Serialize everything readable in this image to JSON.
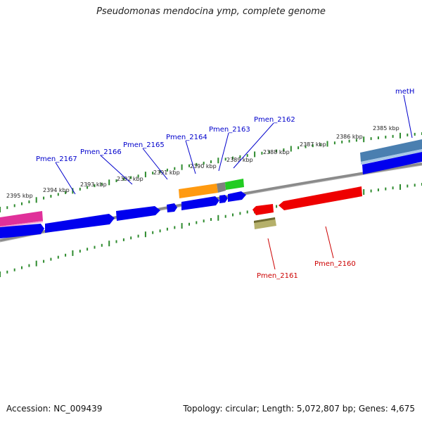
{
  "title": "Pseudomonas mendocina ymp, complete genome",
  "accession": "Accession: NC_009439",
  "stats": "Topology: circular; Length: 5,072,807 bp; Genes: 4,675",
  "colors": {
    "backbone": "#808080",
    "tick": "#2e8b2e",
    "forward_label": "#0000cc",
    "reverse_label": "#cc0000"
  },
  "tick_labels": [
    "2395 kbp",
    "2394 kbp",
    "2393 kbp",
    "2392 kbp",
    "2391 kbp",
    "2390 kbp",
    "2389 kbp",
    "2388 kbp",
    "2387 kbp",
    "2386 kbp",
    "2385 kbp"
  ],
  "genes_forward_labels": [
    "Pmen_2167",
    "Pmen_2166",
    "Pmen_2165",
    "Pmen_2164",
    "Pmen_2163",
    "Pmen_2162",
    "metH"
  ],
  "genes_reverse_labels": [
    "Pmen_2161",
    "Pmen_2160"
  ]
}
